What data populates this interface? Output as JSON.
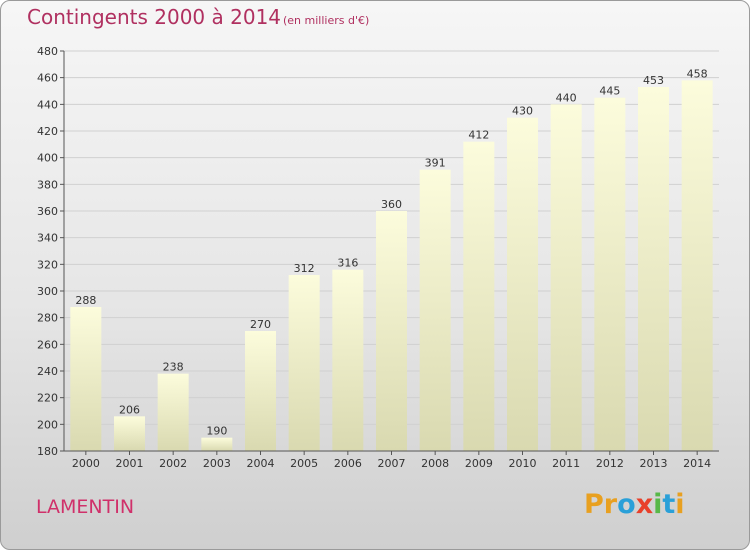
{
  "header": {
    "title": "Contingents 2000 à 2014",
    "subtitle": "(en milliers d'€)"
  },
  "footer": {
    "place": "LAMENTIN",
    "brand": [
      "P",
      "r",
      "o",
      "x",
      "i",
      "t",
      "i"
    ]
  },
  "colors": {
    "title": "#b03060",
    "place": "#d0306a",
    "bar_top": "#fcfcdc",
    "bar_bottom": "#d9d9b0",
    "brand_letters": [
      "#e8a020",
      "#e8a020",
      "#2aa0d8",
      "#e8402a",
      "#58b848",
      "#2aa0d8",
      "#e8a020"
    ]
  },
  "chart_data": {
    "type": "bar",
    "title": "Contingents 2000 à 2014",
    "subtitle": "(en milliers d'€)",
    "categories": [
      "2000",
      "2001",
      "2002",
      "2003",
      "2004",
      "2005",
      "2006",
      "2007",
      "2008",
      "2009",
      "2010",
      "2011",
      "2012",
      "2013",
      "2014"
    ],
    "values": [
      288,
      206,
      238,
      190,
      270,
      312,
      316,
      360,
      391,
      412,
      430,
      440,
      445,
      453,
      458
    ],
    "ylim": [
      180,
      480
    ],
    "yticks": [
      180,
      200,
      220,
      240,
      260,
      280,
      300,
      320,
      340,
      360,
      380,
      400,
      420,
      440,
      460,
      480
    ],
    "grid": true,
    "data_labels": true
  }
}
